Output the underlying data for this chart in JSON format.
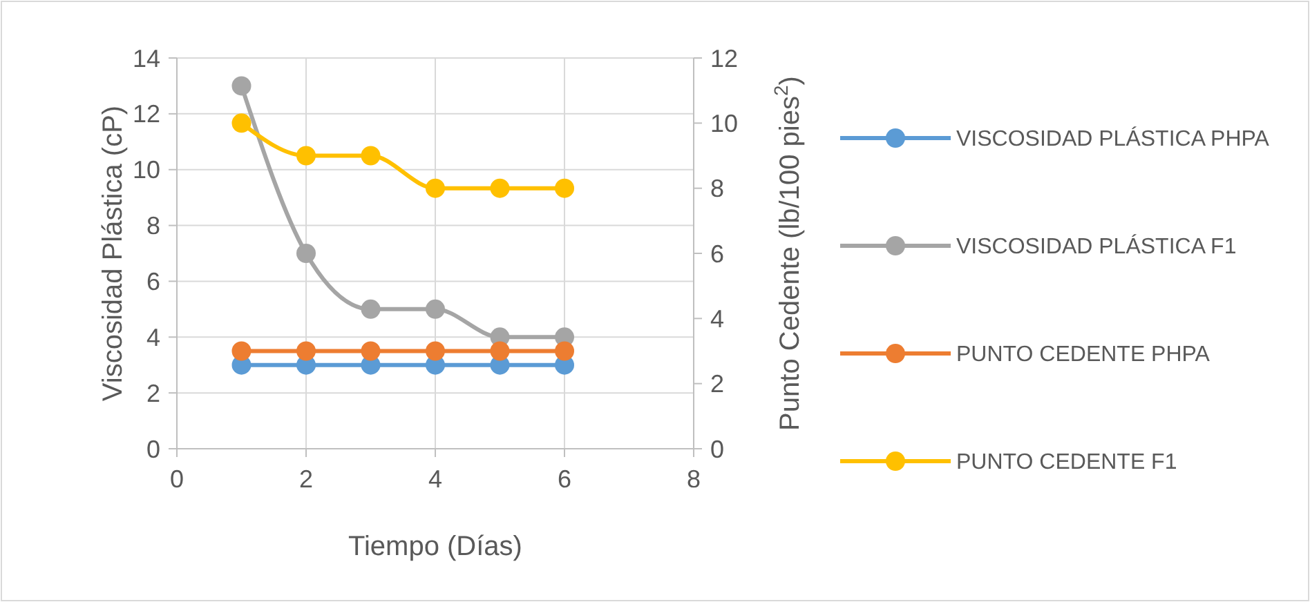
{
  "chart_data": {
    "type": "line",
    "xlabel": "Tiempo (Días)",
    "ylabel": "Viscosidad Plástica (cP)",
    "y2label": "Punto Cedente (lb/100 pies$^{2}$)",
    "x": [
      1,
      2,
      3,
      4,
      5,
      6
    ],
    "xlim": [
      0,
      8
    ],
    "xticks": [
      0,
      2,
      4,
      6,
      8
    ],
    "ylim": [
      0,
      14
    ],
    "yticks": [
      0,
      2,
      4,
      6,
      8,
      10,
      12,
      14
    ],
    "y2lim": [
      0,
      12
    ],
    "y2ticks": [
      0,
      2,
      4,
      6,
      8,
      10,
      12
    ],
    "grid": true,
    "legend": "right",
    "marker": "circle",
    "line_style": "solid",
    "series": [
      {
        "name": "VISCOSIDAD PLÁSTICA PHPA",
        "color": "#5b9bd5",
        "values": [
          3,
          3,
          3,
          3,
          3,
          3
        ]
      },
      {
        "name": "VISCOSIDAD PLÁSTICA F1",
        "color": "#a5a5a5",
        "values": [
          13,
          7,
          5,
          5,
          4,
          4
        ]
      },
      {
        "name": "PUNTO CEDENTE PHPA",
        "color": "#ed7d31",
        "axis": "y2",
        "values": [
          3,
          3,
          3,
          3,
          3,
          3
        ]
      },
      {
        "name": "PUNTO CEDENTE F1",
        "color": "#ffc000",
        "axis": "y2",
        "values": [
          10,
          9,
          9,
          8,
          8,
          8
        ]
      }
    ]
  }
}
